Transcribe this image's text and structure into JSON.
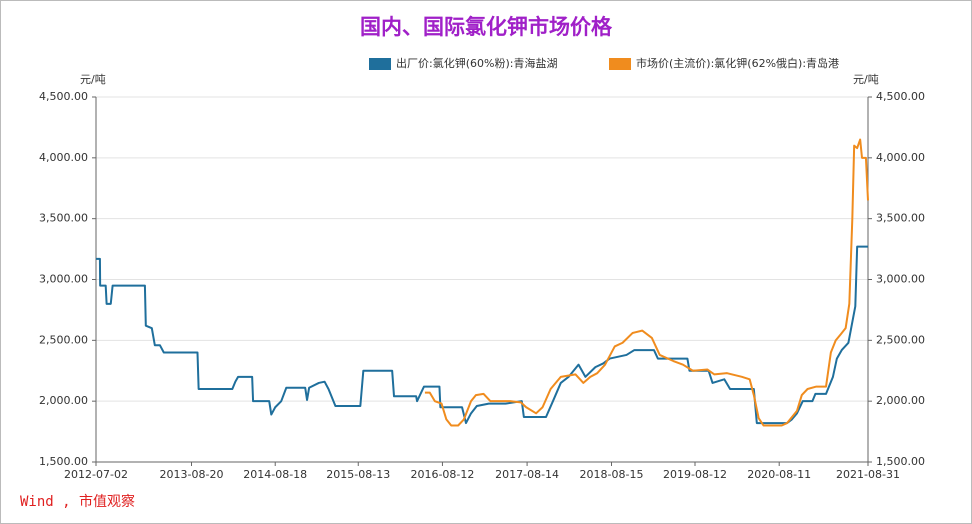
{
  "chart_data": {
    "type": "line",
    "title": "国内、国际氯化钾市场价格",
    "ylabel": "元/吨",
    "y2label": "元/吨",
    "source": "Wind , 市值观察",
    "xlim": [
      "2012-07-02",
      "2021-08-31"
    ],
    "xticks": [
      "2012-07-02",
      "2013-08-20",
      "2014-08-18",
      "2015-08-13",
      "2016-08-12",
      "2017-08-14",
      "2018-08-15",
      "2019-08-12",
      "2020-08-11",
      "2021-08-31"
    ],
    "ylim": [
      1500,
      4500
    ],
    "yticks": [
      {
        "value": 1500,
        "label": "1,500.00"
      },
      {
        "value": 2000,
        "label": "2,000.00"
      },
      {
        "value": 2500,
        "label": "2,500.00"
      },
      {
        "value": 3000,
        "label": "3,000.00"
      },
      {
        "value": 3500,
        "label": "3,500.00"
      },
      {
        "value": 4000,
        "label": "4,000.00"
      },
      {
        "value": 4500,
        "label": "4,500.00"
      }
    ],
    "y2lim": [
      1500,
      4500
    ],
    "y2ticks": [
      {
        "value": 1500,
        "label": "1,500.00"
      },
      {
        "value": 2000,
        "label": "2,000.00"
      },
      {
        "value": 2500,
        "label": "2,500.00"
      },
      {
        "value": 3000,
        "label": "3,000.00"
      },
      {
        "value": 3500,
        "label": "3,500.00"
      },
      {
        "value": 4000,
        "label": "4,000.00"
      },
      {
        "value": 4500,
        "label": "4,500.00"
      }
    ],
    "grid": true,
    "series": [
      {
        "name": "出厂价:氯化钾(60%粉):青海盐湖",
        "color": "#1f6f9c",
        "x": [
          "2012-07-02",
          "2012-07-19",
          "2012-07-20",
          "2012-08-13",
          "2012-08-17",
          "2012-09-04",
          "2012-09-12",
          "2013-01-30",
          "2013-02-03",
          "2013-03-01",
          "2013-03-14",
          "2013-04-05",
          "2013-04-22",
          "2013-09-15",
          "2013-09-20",
          "2014-02-13",
          "2014-02-26",
          "2014-03-10",
          "2014-05-10",
          "2014-05-14",
          "2014-07-23",
          "2014-08-01",
          "2014-08-18",
          "2014-09-13",
          "2014-10-05",
          "2014-12-26",
          "2015-01-03",
          "2015-01-12",
          "2015-02-23",
          "2015-03-20",
          "2015-04-06",
          "2015-05-06",
          "2015-08-22",
          "2015-09-04",
          "2016-01-07",
          "2016-01-15",
          "2016-04-20",
          "2016-04-24",
          "2016-05-24",
          "2016-07-30",
          "2016-08-03",
          "2016-11-05",
          "2016-11-22",
          "2016-12-14",
          "2017-01-08",
          "2017-03-01",
          "2017-05-13",
          "2017-07-22",
          "2017-07-31",
          "2017-11-04",
          "2017-12-04",
          "2018-01-07",
          "2018-02-10",
          "2018-03-25",
          "2018-04-24",
          "2018-06-06",
          "2018-07-10",
          "2018-08-07",
          "2018-10-19",
          "2018-11-22",
          "2019-02-15",
          "2019-03-04",
          "2019-07-10",
          "2019-07-19",
          "2019-10-10",
          "2019-10-27",
          "2019-12-17",
          "2020-01-11",
          "2020-04-23",
          "2020-05-06",
          "2020-09-14",
          "2020-10-05",
          "2020-10-27",
          "2020-11-21",
          "2021-01-02",
          "2021-01-15",
          "2021-03-02",
          "2021-04-01",
          "2021-04-18",
          "2021-05-09",
          "2021-06-07",
          "2021-06-24",
          "2021-07-07",
          "2021-07-15",
          "2021-08-31"
        ],
        "values": [
          3170,
          3170,
          2950,
          2950,
          2800,
          2800,
          2950,
          2950,
          2620,
          2600,
          2460,
          2460,
          2400,
          2400,
          2100,
          2100,
          2160,
          2200,
          2200,
          2000,
          2000,
          1890,
          1950,
          2000,
          2110,
          2110,
          2010,
          2110,
          2150,
          2160,
          2100,
          1960,
          1960,
          2250,
          2250,
          2040,
          2040,
          2000,
          2120,
          2120,
          1950,
          1950,
          1820,
          1900,
          1960,
          1980,
          1980,
          2000,
          1870,
          1870,
          2000,
          2150,
          2200,
          2300,
          2200,
          2280,
          2310,
          2350,
          2380,
          2420,
          2420,
          2350,
          2350,
          2250,
          2250,
          2150,
          2180,
          2100,
          2100,
          1820,
          1820,
          1850,
          1900,
          2000,
          2000,
          2060,
          2060,
          2200,
          2350,
          2420,
          2480,
          2650,
          2780,
          3270,
          3270
        ]
      },
      {
        "name": "市场价(主流价):氯化钾(62%俄白):青岛港",
        "color": "#f08c1e",
        "x": [
          "2016-05-28",
          "2016-06-18",
          "2016-07-10",
          "2016-08-08",
          "2016-08-29",
          "2016-09-19",
          "2016-10-19",
          "2016-11-13",
          "2016-12-14",
          "2017-01-04",
          "2017-02-06",
          "2017-03-08",
          "2017-06-01",
          "2017-07-18",
          "2017-08-10",
          "2017-09-22",
          "2017-10-20",
          "2017-11-24",
          "2018-01-07",
          "2018-03-12",
          "2018-04-15",
          "2018-05-15",
          "2018-06-14",
          "2018-07-18",
          "2018-08-29",
          "2018-10-02",
          "2018-11-14",
          "2018-12-26",
          "2019-02-06",
          "2019-03-12",
          "2019-05-10",
          "2019-06-21",
          "2019-08-03",
          "2019-10-05",
          "2019-11-04",
          "2019-12-29",
          "2020-03-02",
          "2020-04-05",
          "2020-04-23",
          "2020-05-14",
          "2020-06-04",
          "2020-08-22",
          "2020-09-14",
          "2020-10-27",
          "2020-11-17",
          "2020-12-12",
          "2021-01-19",
          "2021-03-02",
          "2021-03-23",
          "2021-04-13",
          "2021-05-05",
          "2021-05-26",
          "2021-06-11",
          "2021-06-24",
          "2021-07-02",
          "2021-07-15",
          "2021-07-28",
          "2021-08-05",
          "2021-08-22",
          "2021-08-31"
        ],
        "values": [
          2070,
          2070,
          2000,
          1980,
          1850,
          1800,
          1800,
          1850,
          2000,
          2050,
          2060,
          2000,
          2000,
          1990,
          1950,
          1900,
          1950,
          2100,
          2200,
          2220,
          2150,
          2200,
          2230,
          2300,
          2450,
          2480,
          2560,
          2580,
          2520,
          2380,
          2330,
          2300,
          2250,
          2260,
          2220,
          2230,
          2200,
          2180,
          2050,
          1860,
          1800,
          1800,
          1820,
          1920,
          2050,
          2100,
          2120,
          2120,
          2400,
          2500,
          2550,
          2600,
          2800,
          3500,
          4100,
          4080,
          4150,
          4000,
          4000,
          3650
        ]
      }
    ]
  }
}
